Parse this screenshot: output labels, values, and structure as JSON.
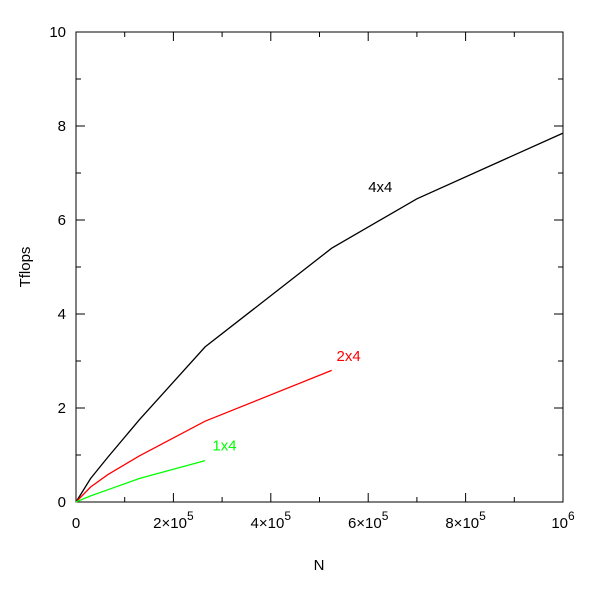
{
  "chart_data": {
    "type": "line",
    "title": "",
    "xlabel": "N",
    "ylabel": "Tflops",
    "xlim": [
      0,
      1000000
    ],
    "ylim": [
      0,
      10
    ],
    "grid": false,
    "x_ticks": [
      {
        "value": 0,
        "label": "0",
        "exp": ""
      },
      {
        "value": 200000,
        "label": "2×10",
        "exp": "5"
      },
      {
        "value": 400000,
        "label": "4×10",
        "exp": "5"
      },
      {
        "value": 600000,
        "label": "6×10",
        "exp": "5"
      },
      {
        "value": 800000,
        "label": "8×10",
        "exp": "5"
      },
      {
        "value": 1000000,
        "label": "10",
        "exp": "6"
      }
    ],
    "y_ticks": [
      {
        "value": 0,
        "label": "0"
      },
      {
        "value": 2,
        "label": "2"
      },
      {
        "value": 4,
        "label": "4"
      },
      {
        "value": 6,
        "label": "6"
      },
      {
        "value": 8,
        "label": "8"
      },
      {
        "value": 10,
        "label": "10"
      }
    ],
    "series": [
      {
        "name": "4x4",
        "color": "#000000",
        "label_at": [
          600000,
          6.6
        ],
        "x": [
          0,
          30000,
          65000,
          130000,
          265000,
          525000,
          700000,
          1000000
        ],
        "y": [
          0,
          0.5,
          0.95,
          1.75,
          3.3,
          5.4,
          6.45,
          7.85
        ]
      },
      {
        "name": "2x4",
        "color": "#ff0000",
        "label_at": [
          535000,
          3.0
        ],
        "x": [
          0,
          30000,
          65000,
          130000,
          265000,
          525000
        ],
        "y": [
          0,
          0.32,
          0.58,
          0.98,
          1.72,
          2.8
        ]
      },
      {
        "name": "1x4",
        "color": "#00ff00",
        "label_at": [
          280000,
          1.1
        ],
        "x": [
          0,
          30000,
          65000,
          130000,
          265000
        ],
        "y": [
          0,
          0.13,
          0.26,
          0.5,
          0.88
        ]
      }
    ]
  }
}
